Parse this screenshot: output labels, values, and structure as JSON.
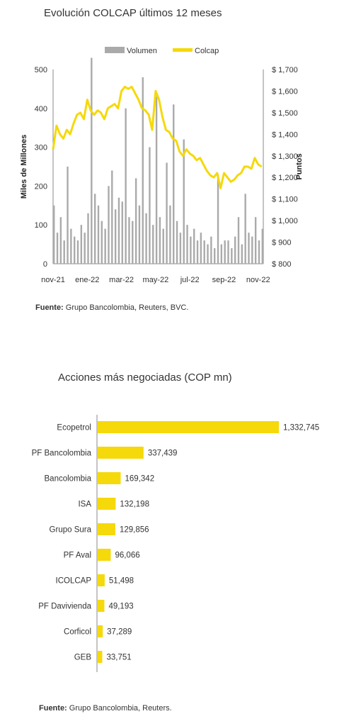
{
  "chart_data": [
    {
      "type": "bar+line",
      "title": "Evolución COLCAP últimos 12 meses",
      "ylabel": "Miles de Millones",
      "y2label": "Puntos",
      "ylim": [
        0,
        500
      ],
      "y2lim": [
        800,
        1700
      ],
      "yticks": [
        "0",
        "100",
        "200",
        "300",
        "400",
        "500"
      ],
      "y2ticks": [
        "$ 800",
        "$ 900",
        "$ 1,000",
        "$ 1,100",
        "$ 1,200",
        "$ 1,300",
        "$ 1,400",
        "$ 1,500",
        "$ 1,600",
        "$ 1,700"
      ],
      "xticks": [
        "nov-21",
        "ene-22",
        "mar-22",
        "may-22",
        "jul-22",
        "sep-22",
        "nov-22"
      ],
      "legend": [
        "Volumen",
        "Colcap"
      ],
      "legend_position": "top",
      "colors": {
        "volumen": "#aaaaaa",
        "colcap": "#f5d90a"
      },
      "x_month_positions": [
        0,
        2,
        4,
        6,
        8,
        10,
        12
      ],
      "series": [
        {
          "name": "Colcap",
          "kind": "line",
          "axis": "right",
          "x": [
            0,
            0.2,
            0.4,
            0.6,
            0.8,
            1.0,
            1.2,
            1.4,
            1.6,
            1.8,
            2.0,
            2.2,
            2.4,
            2.6,
            2.8,
            3.0,
            3.2,
            3.4,
            3.6,
            3.8,
            4.0,
            4.2,
            4.4,
            4.6,
            4.8,
            5.0,
            5.2,
            5.4,
            5.6,
            5.8,
            6.0,
            6.2,
            6.4,
            6.6,
            6.8,
            7.0,
            7.2,
            7.4,
            7.6,
            7.8,
            8.0,
            8.2,
            8.4,
            8.6,
            8.8,
            9.0,
            9.2,
            9.4,
            9.6,
            9.8,
            10.0,
            10.2,
            10.4,
            10.6,
            10.8,
            11.0,
            11.2,
            11.4,
            11.6,
            11.8,
            12.0,
            12.2
          ],
          "values": [
            1330,
            1440,
            1400,
            1380,
            1420,
            1400,
            1450,
            1490,
            1500,
            1470,
            1560,
            1510,
            1490,
            1510,
            1500,
            1470,
            1520,
            1530,
            1540,
            1520,
            1600,
            1620,
            1610,
            1620,
            1590,
            1560,
            1520,
            1510,
            1490,
            1420,
            1600,
            1560,
            1480,
            1420,
            1410,
            1380,
            1370,
            1320,
            1300,
            1330,
            1310,
            1300,
            1280,
            1290,
            1260,
            1230,
            1210,
            1200,
            1220,
            1150,
            1220,
            1200,
            1180,
            1190,
            1210,
            1220,
            1250,
            1250,
            1240,
            1290,
            1260,
            1250
          ]
        },
        {
          "name": "Volumen",
          "kind": "bar",
          "axis": "left",
          "x": [
            0.05,
            0.25,
            0.45,
            0.65,
            0.85,
            1.05,
            1.25,
            1.45,
            1.65,
            1.85,
            2.05,
            2.25,
            2.45,
            2.65,
            2.85,
            3.05,
            3.25,
            3.45,
            3.65,
            3.85,
            4.05,
            4.25,
            4.45,
            4.65,
            4.85,
            5.05,
            5.25,
            5.45,
            5.65,
            5.85,
            6.05,
            6.25,
            6.45,
            6.65,
            6.85,
            7.05,
            7.25,
            7.45,
            7.65,
            7.85,
            8.05,
            8.25,
            8.45,
            8.65,
            8.85,
            9.05,
            9.25,
            9.45,
            9.65,
            9.85,
            10.05,
            10.25,
            10.45,
            10.65,
            10.85,
            11.05,
            11.25,
            11.45,
            11.65,
            11.85,
            12.05,
            12.25
          ],
          "values": [
            150,
            80,
            120,
            60,
            250,
            90,
            70,
            60,
            100,
            80,
            130,
            530,
            180,
            150,
            110,
            90,
            200,
            240,
            140,
            170,
            160,
            400,
            120,
            110,
            220,
            150,
            480,
            130,
            300,
            100,
            430,
            120,
            90,
            260,
            150,
            410,
            110,
            80,
            320,
            100,
            70,
            90,
            60,
            80,
            60,
            50,
            70,
            40,
            230,
            50,
            60,
            60,
            40,
            70,
            120,
            50,
            180,
            80,
            70,
            120,
            60,
            90
          ]
        }
      ]
    },
    {
      "type": "bar",
      "orientation": "horizontal",
      "title": "Acciones más negociadas (COP mn)",
      "color": "#f5d90a",
      "categories": [
        "Ecopetrol",
        "PF Bancolombia",
        "Bancolombia",
        "ISA",
        "Grupo Sura",
        "PF Aval",
        "ICOLCAP",
        "PF Davivienda",
        "Corficol",
        "GEB"
      ],
      "values": [
        1332745,
        337439,
        169342,
        132198,
        129856,
        96066,
        51498,
        49193,
        37289,
        33751
      ],
      "labels": [
        "1,332,745",
        "337,439",
        "169,342",
        "132,198",
        "129,856",
        "96,066",
        "51,498",
        "49,193",
        "37,289",
        "33,751"
      ]
    }
  ],
  "sources": {
    "chart1": {
      "label": "Fuente:",
      "text": " Grupo Bancolombia, Reuters, BVC."
    },
    "chart2": {
      "label": "Fuente:",
      "text": " Grupo Bancolombia, Reuters."
    }
  }
}
